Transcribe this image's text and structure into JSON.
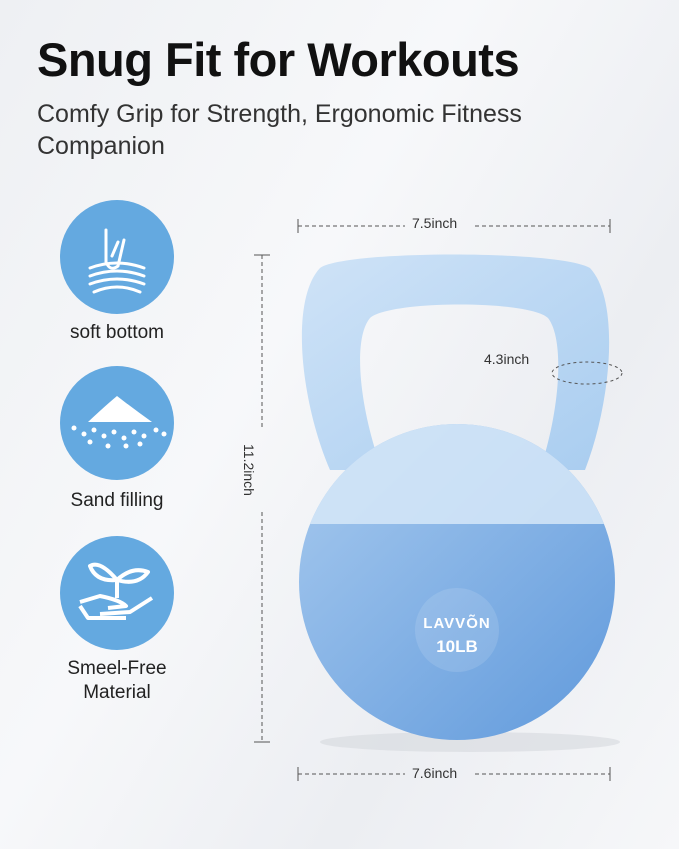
{
  "headline": "Snug Fit for Workouts",
  "subheadline": "Comfy Grip for Strength, Ergonomic Fitness Companion",
  "features": [
    {
      "icon": "finger-press-icon",
      "label": "soft bottom"
    },
    {
      "icon": "sand-pile-icon",
      "label": "Sand filling"
    },
    {
      "icon": "sprout-hand-icon",
      "label": "Smeel-Free Material"
    }
  ],
  "dimensions": {
    "top_width": "7.5inch",
    "height": "11.2inch",
    "handle": "4.3inch",
    "bottom_width": "7.6inch"
  },
  "product": {
    "brand": "LAVVÕN",
    "weight": "10LB"
  },
  "colors": {
    "accent": "#64a9e0",
    "kettlebell": "#7ab0e6"
  }
}
